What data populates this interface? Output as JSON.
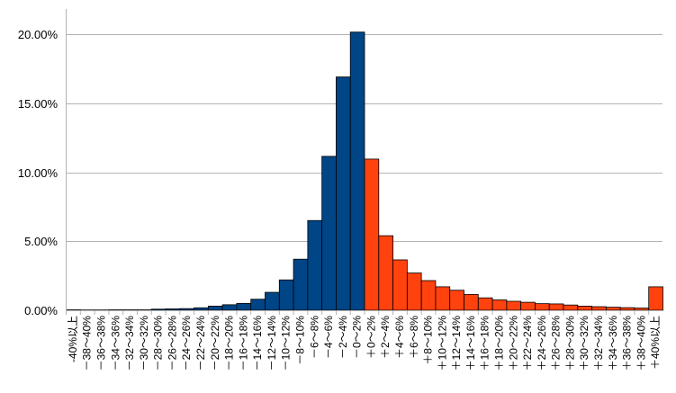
{
  "chart_data": {
    "type": "bar",
    "title": "",
    "xlabel": "",
    "ylabel": "",
    "ylim": [
      0,
      0.2
    ],
    "y_ticks": [
      {
        "value": 0,
        "label": "0.00%"
      },
      {
        "value": 0.05,
        "label": "5.00%"
      },
      {
        "value": 0.1,
        "label": "10.00%"
      },
      {
        "value": 0.15,
        "label": "15.00%"
      },
      {
        "value": 0.2,
        "label": "20.00%"
      }
    ],
    "grid": true,
    "colors": {
      "negative": "#004586",
      "positive": "#ff420e",
      "grid": "#b3b3b3",
      "axis": "#b3b3b3",
      "bar_edge": "#000000"
    },
    "categories": [
      "-40%以上",
      "－38～40%",
      "－36～38%",
      "－34～36%",
      "－32～34%",
      "－30～32%",
      "－28～30%",
      "－26～28%",
      "－24～26%",
      "－22～24%",
      "－20～22%",
      "－18～20%",
      "－16～18%",
      "－14～16%",
      "－12～14%",
      "－10～12%",
      "－8～10%",
      "－6～8%",
      "－4～6%",
      "－2～4%",
      "－0～2%",
      "＋0～2%",
      "＋2～4%",
      "＋4～6%",
      "＋6～8%",
      "＋8～10%",
      "＋10～12%",
      "＋12～14%",
      "＋14～16%",
      "＋16～18%",
      "＋18～20%",
      "＋20～22%",
      "＋22～24%",
      "＋24～26%",
      "＋26～28%",
      "＋28～30%",
      "＋30～32%",
      "＋32～34%",
      "＋34～36%",
      "＋36～38%",
      "＋38～40%",
      "＋40%以上"
    ],
    "values": [
      0.0003,
      0.0002,
      0.0002,
      0.0003,
      0.0003,
      0.0003,
      0.0008,
      0.001,
      0.0012,
      0.0018,
      0.003,
      0.004,
      0.005,
      0.008,
      0.013,
      0.022,
      0.037,
      0.065,
      0.1115,
      0.169,
      0.2015,
      0.1095,
      0.054,
      0.0365,
      0.027,
      0.0215,
      0.017,
      0.0145,
      0.0115,
      0.009,
      0.0075,
      0.0065,
      0.0058,
      0.0048,
      0.0046,
      0.0038,
      0.003,
      0.0026,
      0.0022,
      0.0019,
      0.0016,
      0.017
    ],
    "series_color_by_index": {
      "negative_until": 20
    }
  }
}
